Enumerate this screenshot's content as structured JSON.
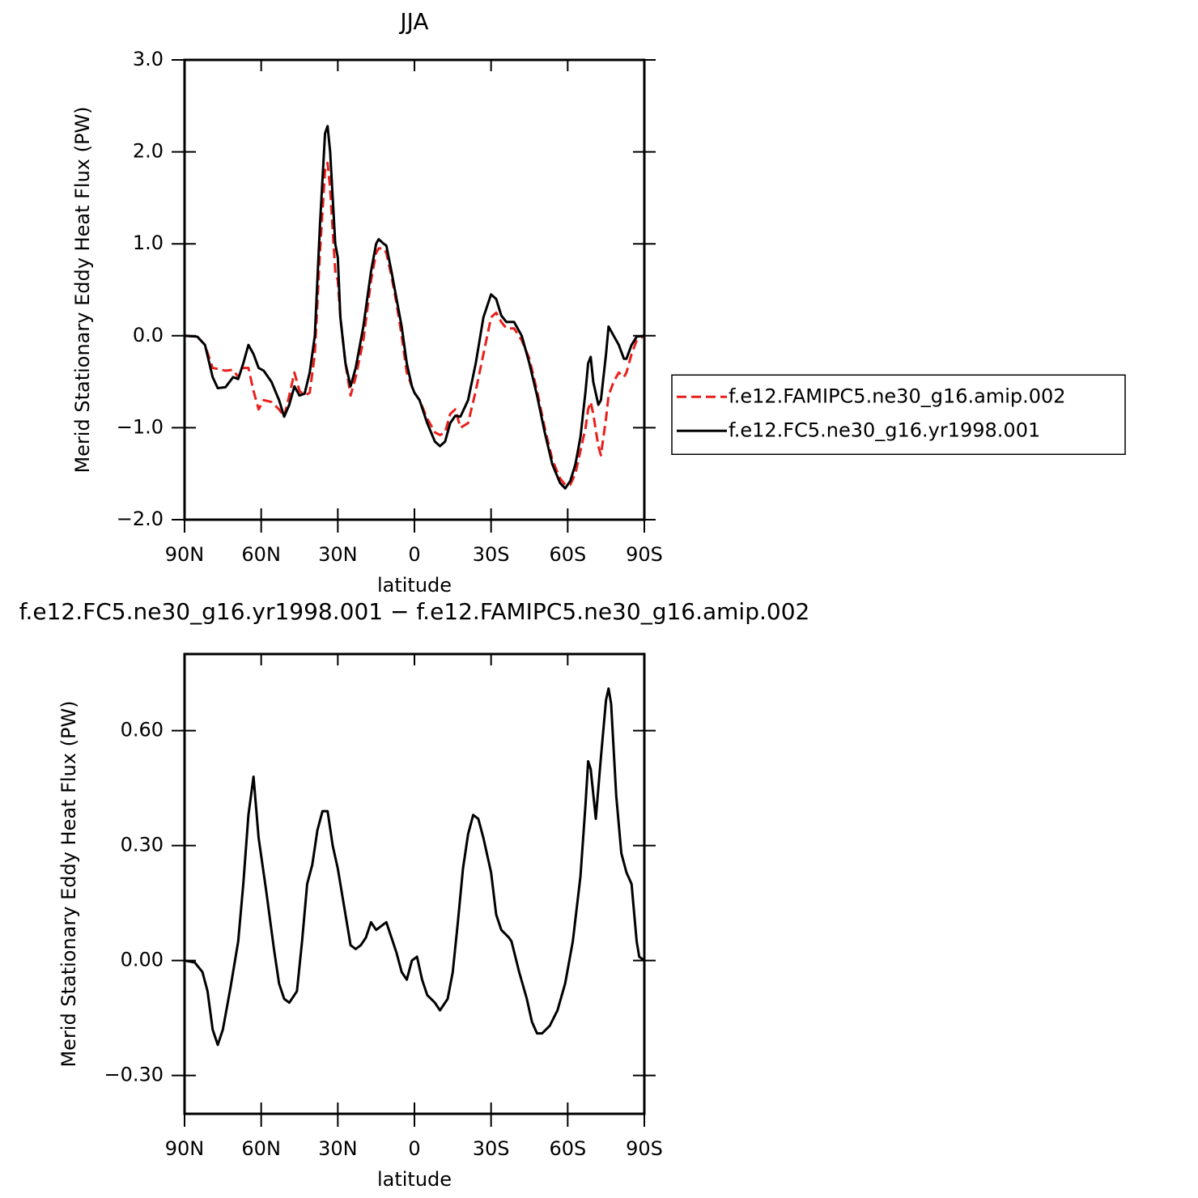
{
  "chart_data": [
    {
      "type": "line",
      "title": "JJA",
      "xlabel": "latitude",
      "ylabel": "Merid Stationary Eddy Heat Flux (PW)",
      "x": [
        90,
        85,
        82,
        79,
        77,
        74,
        71,
        69,
        67,
        65,
        63,
        61,
        59,
        56,
        53,
        51,
        49,
        47,
        45,
        43,
        41,
        39,
        37,
        35,
        34,
        33,
        31,
        30,
        29,
        27,
        25,
        23,
        20,
        17,
        15,
        14,
        12,
        11,
        9,
        7,
        5,
        3,
        1,
        0,
        -2,
        -5,
        -8,
        -10,
        -12,
        -14,
        -16,
        -18,
        -21,
        -24,
        -27,
        -30,
        -32,
        -34,
        -36,
        -39,
        -42,
        -45,
        -48,
        -51,
        -54,
        -57,
        -59,
        -61,
        -63,
        -65,
        -67,
        -68,
        -69,
        -70,
        -72,
        -73,
        -75,
        -76,
        -78,
        -80,
        -82,
        -83,
        -85,
        -87,
        -90
      ],
      "series": [
        {
          "name": "f.e12.FAMIPC5.ne30_g16.amip.002",
          "color": "#e8201c",
          "style": "dashed",
          "values": [
            0,
            -0.01,
            -0.1,
            -0.35,
            -0.36,
            -0.38,
            -0.37,
            -0.45,
            -0.35,
            -0.35,
            -0.6,
            -0.8,
            -0.7,
            -0.72,
            -0.8,
            -0.88,
            -0.65,
            -0.4,
            -0.6,
            -0.65,
            -0.62,
            -0.2,
            0.9,
            1.8,
            1.88,
            1.6,
            0.7,
            0.6,
            0.2,
            -0.3,
            -0.65,
            -0.45,
            -0.05,
            0.6,
            0.9,
            0.95,
            0.95,
            0.9,
            0.65,
            0.35,
            0.0,
            -0.4,
            -0.55,
            -0.62,
            -0.7,
            -0.9,
            -1.05,
            -1.08,
            -1.05,
            -0.85,
            -0.8,
            -1.0,
            -0.95,
            -0.6,
            -0.2,
            0.2,
            0.25,
            0.15,
            0.08,
            0.08,
            -0.05,
            -0.25,
            -0.6,
            -1.0,
            -1.35,
            -1.55,
            -1.62,
            -1.62,
            -1.5,
            -1.25,
            -1.0,
            -0.8,
            -0.72,
            -0.85,
            -1.2,
            -1.3,
            -0.9,
            -0.65,
            -0.5,
            -0.4,
            -0.45,
            -0.4,
            -0.2,
            -0.05,
            0
          ]
        },
        {
          "name": "f.e12.FC5.ne30_g16.yr1998.001",
          "color": "#000000",
          "style": "solid",
          "values": [
            0,
            -0.01,
            -0.1,
            -0.45,
            -0.57,
            -0.56,
            -0.45,
            -0.47,
            -0.3,
            -0.1,
            -0.2,
            -0.35,
            -0.38,
            -0.5,
            -0.7,
            -0.88,
            -0.75,
            -0.55,
            -0.65,
            -0.63,
            -0.4,
            0.0,
            1.2,
            2.2,
            2.28,
            2.0,
            1.0,
            0.85,
            0.2,
            -0.3,
            -0.55,
            -0.35,
            0.1,
            0.7,
            1.0,
            1.05,
            1.0,
            0.98,
            0.7,
            0.4,
            0.1,
            -0.3,
            -0.55,
            -0.62,
            -0.7,
            -0.95,
            -1.15,
            -1.2,
            -1.15,
            -0.95,
            -0.87,
            -0.88,
            -0.7,
            -0.3,
            0.2,
            0.45,
            0.4,
            0.22,
            0.15,
            0.15,
            0.0,
            -0.3,
            -0.65,
            -1.05,
            -1.4,
            -1.6,
            -1.66,
            -1.58,
            -1.4,
            -1.1,
            -0.6,
            -0.3,
            -0.23,
            -0.5,
            -0.75,
            -0.7,
            -0.2,
            0.1,
            0.0,
            -0.1,
            -0.25,
            -0.25,
            -0.1,
            -0.01,
            0
          ]
        }
      ],
      "xlim": [
        90,
        -90
      ],
      "xticks": [
        {
          "value": 90,
          "label": "90N"
        },
        {
          "value": 60,
          "label": "60N"
        },
        {
          "value": 30,
          "label": "30N"
        },
        0,
        {
          "value": -30,
          "label": "30S"
        },
        {
          "value": -60,
          "label": "60S"
        },
        {
          "value": -90,
          "label": "90S"
        }
      ],
      "ylim": [
        -2,
        3
      ],
      "yticks": [
        {
          "value": -2,
          "label": "−2.0"
        },
        {
          "value": -1,
          "label": "−1.0"
        },
        {
          "value": 0,
          "label": "0.0"
        },
        {
          "value": 1,
          "label": "1.0"
        },
        {
          "value": 2,
          "label": "2.0"
        },
        {
          "value": 3,
          "label": "3.0"
        }
      ],
      "legend": "right"
    },
    {
      "type": "line",
      "title": "f.e12.FC5.ne30_g16.yr1998.001 − f.e12.FAMIPC5.ne30_g16.amip.002",
      "xlabel": "latitude",
      "ylabel": "Merid Stationary Eddy Heat Flux (PW)",
      "x": [
        90,
        86,
        83,
        81,
        79,
        77,
        75,
        72,
        69,
        67,
        65,
        63,
        61,
        58,
        55,
        53,
        51,
        49,
        46,
        44,
        42,
        40,
        38,
        36,
        34,
        32,
        30,
        29,
        26,
        25,
        23,
        21,
        19,
        17,
        15,
        13,
        11,
        9,
        7,
        5,
        3,
        1,
        -1,
        -3,
        -5,
        -8,
        -10,
        -13,
        -15,
        -17,
        -19,
        -21,
        -23,
        -25,
        -27,
        -30,
        -32,
        -34,
        -37,
        -38,
        -41,
        -44,
        -46,
        -48,
        -50,
        -53,
        -56,
        -59,
        -62,
        -65,
        -67,
        -68,
        -69,
        -71,
        -73,
        -75,
        -76,
        -77,
        -79,
        -81,
        -83,
        -85,
        -87,
        -88,
        -90
      ],
      "series": [
        {
          "color": "#000000",
          "style": "solid",
          "values": [
            0,
            -0.005,
            -0.03,
            -0.08,
            -0.18,
            -0.22,
            -0.18,
            -0.07,
            0.05,
            0.2,
            0.38,
            0.48,
            0.32,
            0.18,
            0.03,
            -0.06,
            -0.1,
            -0.11,
            -0.08,
            0.05,
            0.2,
            0.25,
            0.34,
            0.39,
            0.39,
            0.3,
            0.24,
            0.2,
            0.08,
            0.04,
            0.03,
            0.04,
            0.06,
            0.1,
            0.08,
            0.09,
            0.1,
            0.06,
            0.02,
            -0.03,
            -0.05,
            0.0,
            0.01,
            -0.05,
            -0.09,
            -0.11,
            -0.13,
            -0.1,
            -0.03,
            0.1,
            0.24,
            0.33,
            0.38,
            0.37,
            0.32,
            0.23,
            0.12,
            0.08,
            0.06,
            0.05,
            -0.03,
            -0.1,
            -0.16,
            -0.19,
            -0.19,
            -0.17,
            -0.13,
            -0.06,
            0.05,
            0.22,
            0.41,
            0.52,
            0.5,
            0.37,
            0.53,
            0.68,
            0.71,
            0.67,
            0.43,
            0.28,
            0.23,
            0.2,
            0.05,
            0.01,
            0
          ]
        }
      ],
      "xlim": [
        90,
        -90
      ],
      "xticks": [
        {
          "value": 90,
          "label": "90N"
        },
        {
          "value": 60,
          "label": "60N"
        },
        {
          "value": 30,
          "label": "30N"
        },
        0,
        {
          "value": -30,
          "label": "30S"
        },
        {
          "value": -60,
          "label": "60S"
        },
        {
          "value": -90,
          "label": "90S"
        }
      ],
      "ylim": [
        -0.4,
        0.8
      ],
      "yticks": [
        {
          "value": -0.3,
          "label": "−0.30"
        },
        {
          "value": 0,
          "label": "0.00"
        },
        {
          "value": 0.3,
          "label": "0.30"
        },
        {
          "value": 0.6,
          "label": "0.60"
        }
      ]
    }
  ]
}
